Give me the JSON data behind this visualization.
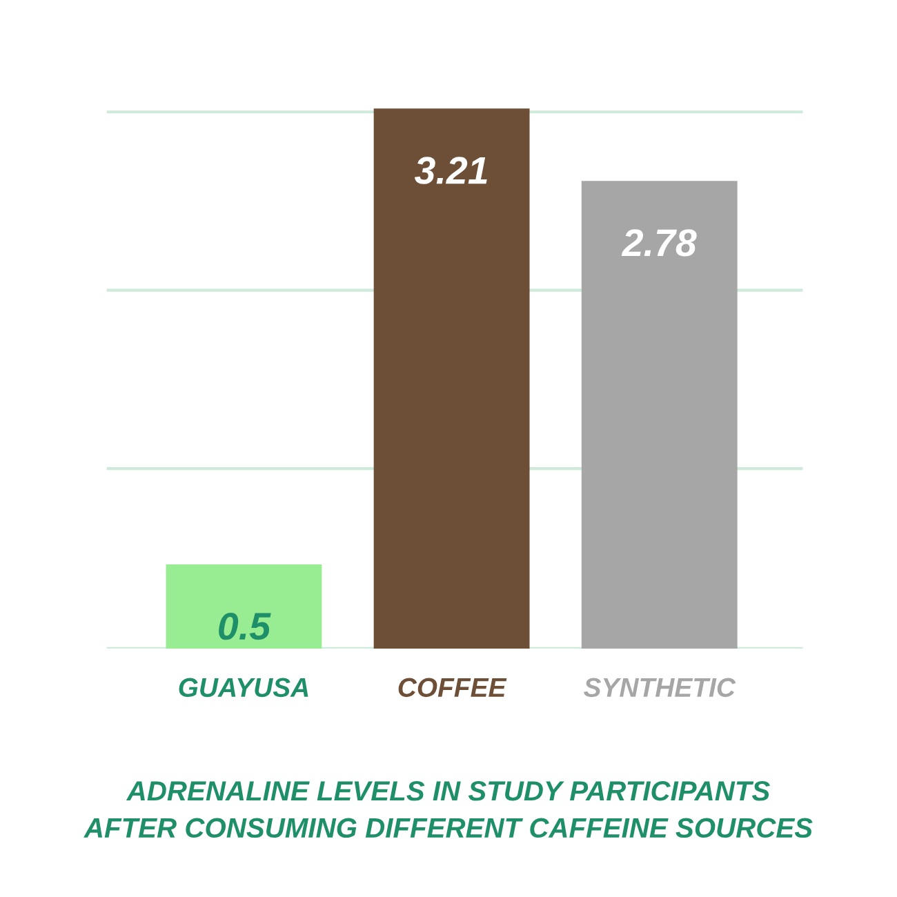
{
  "chart_data": {
    "type": "bar",
    "title": "ADRENALINE LEVELS IN STUDY PARTICIPANTS\nAFTER CONSUMING DIFFERENT CAFFEINE SOURCES",
    "categories": [
      "GUAYUSA",
      "COFFEE",
      "SYNTHETIC"
    ],
    "values": [
      0.5,
      3.21,
      2.78
    ],
    "colors": [
      "#98ec92",
      "#6d4f37",
      "#a6a6a6"
    ],
    "data_labels": true,
    "yticks": [
      {
        "value": 0,
        "label": null
      },
      {
        "value": 1.07,
        "label": null
      },
      {
        "value": 2.13,
        "label": null
      },
      {
        "value": 3.19,
        "label": null
      }
    ],
    "grid": "y",
    "tick_labels": "x",
    "legend": false
  }
}
